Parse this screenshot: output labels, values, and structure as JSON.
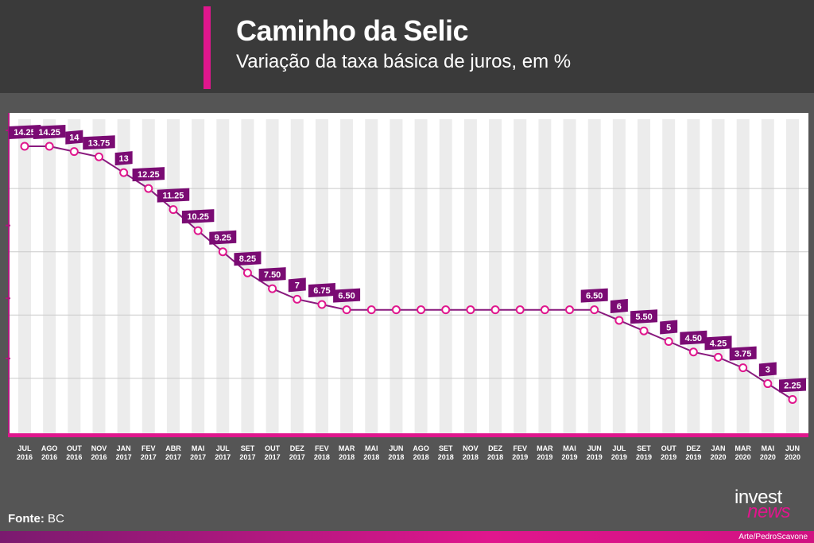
{
  "header": {
    "title": "Caminho da Selic",
    "subtitle": "Variação da taxa básica de juros, em %"
  },
  "colors": {
    "accent": "#e0168d",
    "label_box": "#7a0b73",
    "line": "#8a1a7e",
    "background": "#3a3a3a"
  },
  "chart_data": {
    "type": "line",
    "title": "Caminho da Selic",
    "subtitle": "Variação da taxa básica de juros, em %",
    "xlabel": "",
    "ylabel": "",
    "ylim": [
      1.25,
      14.25
    ],
    "grid": true,
    "categories": [
      {
        "m": "JUL",
        "y": "2016"
      },
      {
        "m": "AGO",
        "y": "2016"
      },
      {
        "m": "OUT",
        "y": "2016"
      },
      {
        "m": "NOV",
        "y": "2016"
      },
      {
        "m": "JAN",
        "y": "2017"
      },
      {
        "m": "FEV",
        "y": "2017"
      },
      {
        "m": "ABR",
        "y": "2017"
      },
      {
        "m": "MAI",
        "y": "2017"
      },
      {
        "m": "JUL",
        "y": "2017"
      },
      {
        "m": "SET",
        "y": "2017"
      },
      {
        "m": "OUT",
        "y": "2017"
      },
      {
        "m": "DEZ",
        "y": "2017"
      },
      {
        "m": "FEV",
        "y": "2018"
      },
      {
        "m": "MAR",
        "y": "2018"
      },
      {
        "m": "MAI",
        "y": "2018"
      },
      {
        "m": "JUN",
        "y": "2018"
      },
      {
        "m": "AGO",
        "y": "2018"
      },
      {
        "m": "SET",
        "y": "2018"
      },
      {
        "m": "NOV",
        "y": "2018"
      },
      {
        "m": "DEZ",
        "y": "2018"
      },
      {
        "m": "FEV",
        "y": "2019"
      },
      {
        "m": "MAR",
        "y": "2019"
      },
      {
        "m": "MAI",
        "y": "2019"
      },
      {
        "m": "JUN",
        "y": "2019"
      },
      {
        "m": "JUL",
        "y": "2019"
      },
      {
        "m": "SET",
        "y": "2019"
      },
      {
        "m": "OUT",
        "y": "2019"
      },
      {
        "m": "DEZ",
        "y": "2019"
      },
      {
        "m": "JAN",
        "y": "2020"
      },
      {
        "m": "MAR",
        "y": "2020"
      },
      {
        "m": "MAI",
        "y": "2020"
      },
      {
        "m": "JUN",
        "y": "2020"
      }
    ],
    "values": [
      14.25,
      14.25,
      14,
      13.75,
      13,
      12.25,
      11.25,
      10.25,
      9.25,
      8.25,
      7.5,
      7,
      6.75,
      6.5,
      6.5,
      6.5,
      6.5,
      6.5,
      6.5,
      6.5,
      6.5,
      6.5,
      6.5,
      6.5,
      6,
      5.5,
      5,
      4.5,
      4.25,
      3.75,
      3,
      2.25
    ],
    "data_labels": [
      "14.25",
      "14.25",
      "14",
      "13.75",
      "13",
      "12.25",
      "11.25",
      "10.25",
      "9.25",
      "8.25",
      "7.50",
      "7",
      "6.75",
      "6.50",
      null,
      null,
      null,
      null,
      null,
      null,
      null,
      null,
      null,
      "6.50",
      "6",
      "5.50",
      "5",
      "4.50",
      "4.25",
      "3.75",
      "3",
      "2.25"
    ]
  },
  "footer": {
    "source_label": "Fonte:",
    "source_value": " BC",
    "logo_line1": "invest",
    "logo_line2": "news",
    "credit": "Arte/PedroScavone"
  }
}
